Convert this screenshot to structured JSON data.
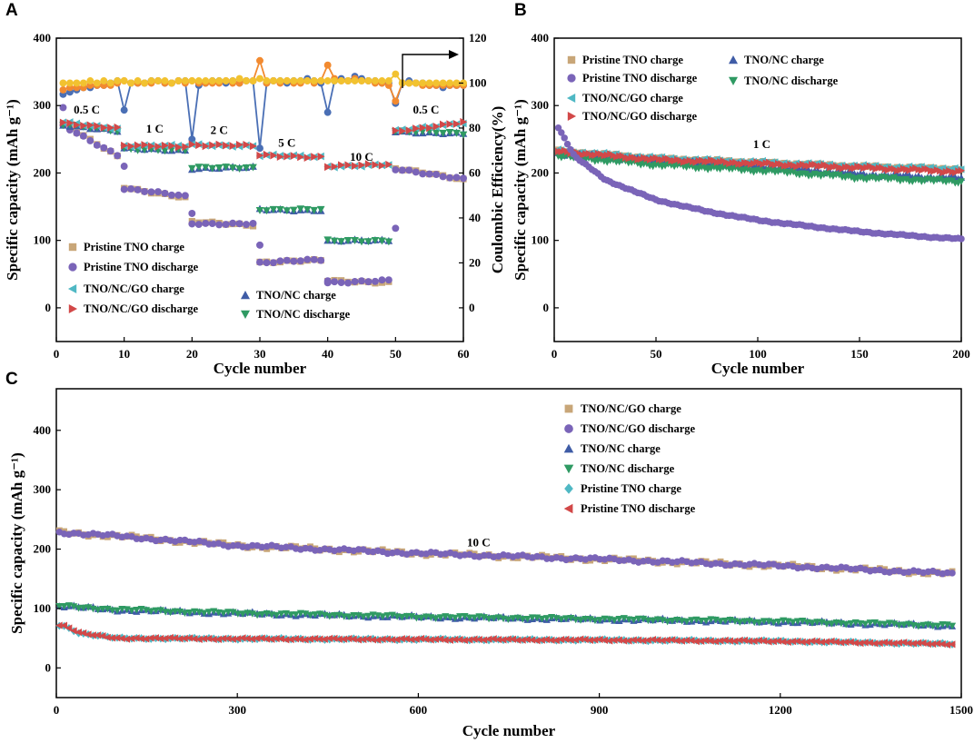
{
  "colors": {
    "tan": "#C8A678",
    "purple": "#7A64B8",
    "cyan": "#4FB8C4",
    "red": "#D24848",
    "blue": "#3F5CA6",
    "green": "#2F9A63",
    "ce_blue": "#4A6FB5",
    "ce_orange": "#F28A30",
    "ce_yellow": "#F2C230"
  },
  "chart_data": [
    {
      "panel": "A",
      "type": "scatter",
      "xlabel": "Cycle number",
      "ylabel": "Specific capacity (mAh g⁻¹)",
      "y2label": "Coulombic Efficiency(%)",
      "xlim": [
        0,
        60
      ],
      "ylim": [
        -50,
        400
      ],
      "y2lim": [
        -15,
        120
      ],
      "x_ticks": [
        0,
        10,
        20,
        30,
        40,
        50,
        60
      ],
      "y_ticks": [
        0,
        100,
        200,
        300,
        400
      ],
      "y2_ticks": [
        0,
        20,
        40,
        60,
        80,
        100,
        120
      ],
      "rate_labels": [
        {
          "text": "0.5 C",
          "x": 4.5,
          "y": 288
        },
        {
          "text": "1 C",
          "x": 14.5,
          "y": 260
        },
        {
          "text": "2 C",
          "x": 24,
          "y": 258
        },
        {
          "text": "5 C",
          "x": 34,
          "y": 239
        },
        {
          "text": "10 C",
          "x": 45,
          "y": 218
        },
        {
          "text": "0.5 C",
          "x": 54.5,
          "y": 288
        }
      ],
      "legend": [
        {
          "label": "Pristine TNO charge",
          "marker": "square",
          "color": "tan"
        },
        {
          "label": "Pristine TNO discharge",
          "marker": "circle",
          "color": "purple"
        },
        {
          "label": "TNO/NC/GO charge",
          "marker": "tri-left",
          "color": "cyan"
        },
        {
          "label": "TNO/NC/GO discharge",
          "marker": "tri-right",
          "color": "red"
        },
        {
          "label": "TNO/NC charge",
          "marker": "tri-up",
          "color": "blue"
        },
        {
          "label": "TNO/NC discharge",
          "marker": "tri-down",
          "color": "green"
        }
      ],
      "series_segments": {
        "pristine": [
          [
            1,
            9,
            272,
            225
          ],
          [
            10,
            19,
            179,
            163
          ],
          [
            20,
            29,
            127,
            123
          ],
          [
            30,
            39,
            68,
            70
          ],
          [
            40,
            49,
            40,
            38
          ],
          [
            50,
            60,
            207,
            190
          ]
        ],
        "nc_go": [
          [
            1,
            9,
            275,
            266
          ],
          [
            10,
            19,
            240,
            240
          ],
          [
            20,
            29,
            242,
            240
          ],
          [
            30,
            39,
            226,
            224
          ],
          [
            40,
            49,
            210,
            212
          ],
          [
            50,
            60,
            262,
            275
          ]
        ],
        "nc": [
          [
            1,
            9,
            272,
            262
          ],
          [
            10,
            19,
            236,
            234
          ],
          [
            20,
            29,
            207,
            208
          ],
          [
            30,
            39,
            146,
            145
          ],
          [
            40,
            49,
            99,
            100
          ],
          [
            50,
            60,
            262,
            258
          ]
        ]
      },
      "extra_points": {
        "pristine": [
          [
            1,
            297
          ],
          [
            10,
            210
          ],
          [
            20,
            140
          ],
          [
            30,
            93
          ],
          [
            40,
            40
          ],
          [
            50,
            118
          ]
        ]
      },
      "coulombic_efficiency": {
        "x": [
          1,
          2,
          3,
          4,
          5,
          6,
          7,
          8,
          9,
          10,
          11,
          12,
          13,
          14,
          15,
          16,
          17,
          18,
          19,
          20,
          21,
          22,
          23,
          24,
          25,
          26,
          27,
          28,
          29,
          30,
          31,
          32,
          33,
          34,
          35,
          36,
          37,
          38,
          39,
          40,
          41,
          42,
          43,
          44,
          45,
          46,
          47,
          48,
          49,
          50,
          51,
          52,
          53,
          54,
          55,
          56,
          57,
          58,
          59,
          60
        ],
        "pristine": [
          95,
          96,
          97,
          98,
          98,
          99,
          99,
          100,
          101,
          88,
          100,
          100,
          100,
          101,
          101,
          100,
          100,
          101,
          101,
          75,
          99,
          100,
          101,
          101,
          100,
          101,
          100,
          101,
          101,
          71,
          100,
          101,
          101,
          100,
          101,
          101,
          102,
          101,
          100,
          87,
          101,
          102,
          101,
          103,
          102,
          101,
          101,
          100,
          100,
          91,
          100,
          101,
          100,
          100,
          99,
          99,
          98,
          99,
          99,
          99
        ],
        "nc_go": [
          97,
          98,
          98,
          98,
          99,
          99,
          99,
          99,
          100,
          101,
          100,
          100,
          100,
          100,
          101,
          100,
          100,
          101,
          100,
          101,
          100,
          100,
          100,
          100,
          101,
          100,
          100,
          101,
          101,
          110,
          100,
          101,
          100,
          101,
          100,
          100,
          101,
          100,
          101,
          108,
          102,
          101,
          101,
          102,
          101,
          101,
          100,
          100,
          99,
          92,
          100,
          100,
          100,
          99,
          99,
          99,
          99,
          99,
          99,
          99
        ],
        "nc_tno": [
          100,
          100,
          100,
          100,
          101,
          100,
          101,
          100,
          101,
          101,
          100,
          101,
          100,
          101,
          101,
          101,
          100,
          101,
          101,
          101,
          101,
          101,
          101,
          101,
          101,
          101,
          102,
          101,
          101,
          102,
          101,
          101,
          101,
          101,
          101,
          101,
          101,
          101,
          101,
          101,
          101,
          101,
          101,
          101,
          101,
          101,
          101,
          101,
          101,
          104,
          100,
          100,
          100,
          100,
          100,
          100,
          100,
          100,
          100,
          100
        ]
      }
    },
    {
      "panel": "B",
      "type": "scatter",
      "xlabel": "Cycle number",
      "ylabel": "Specific capacity (mAh g⁻¹)",
      "xlim": [
        0,
        200
      ],
      "ylim": [
        -50,
        400
      ],
      "x_ticks": [
        0,
        50,
        100,
        150,
        200
      ],
      "y_ticks": [
        0,
        100,
        200,
        300,
        400
      ],
      "annotation": {
        "text": "1 C",
        "x": 102,
        "y": 237
      },
      "legend": [
        {
          "label": "Pristine TNO charge",
          "marker": "square",
          "color": "tan"
        },
        {
          "label": "Pristine TNO discharge",
          "marker": "circle",
          "color": "purple"
        },
        {
          "label": "TNO/NC charge",
          "marker": "tri-up",
          "color": "blue"
        },
        {
          "label": "TNO/NC discharge",
          "marker": "tri-down",
          "color": "green"
        },
        {
          "label": "TNO/NC/GO charge",
          "marker": "tri-left",
          "color": "cyan"
        },
        {
          "label": "TNO/NC/GO discharge",
          "marker": "tri-right",
          "color": "red"
        }
      ],
      "curves": {
        "pristine": [
          [
            2,
            268
          ],
          [
            10,
            225
          ],
          [
            25,
            190
          ],
          [
            50,
            160
          ],
          [
            75,
            143
          ],
          [
            100,
            130
          ],
          [
            125,
            121
          ],
          [
            150,
            113
          ],
          [
            175,
            107
          ],
          [
            200,
            102
          ]
        ],
        "nc_go": [
          [
            2,
            233
          ],
          [
            50,
            222
          ],
          [
            100,
            216
          ],
          [
            150,
            210
          ],
          [
            200,
            206
          ]
        ],
        "nc_go_red": [
          [
            2,
            232
          ],
          [
            50,
            220
          ],
          [
            100,
            214
          ],
          [
            150,
            208
          ],
          [
            200,
            202
          ]
        ],
        "nc": [
          [
            2,
            229
          ],
          [
            50,
            218
          ],
          [
            100,
            210
          ],
          [
            150,
            198
          ],
          [
            200,
            192
          ]
        ],
        "nc_green": [
          [
            2,
            225
          ],
          [
            50,
            212
          ],
          [
            100,
            204
          ],
          [
            150,
            193
          ],
          [
            200,
            187
          ]
        ]
      }
    },
    {
      "panel": "C",
      "type": "scatter",
      "xlabel": "Cycle number",
      "ylabel": "Specific capacity (mAh g⁻¹)",
      "xlim": [
        0,
        1500
      ],
      "ylim": [
        -50,
        470
      ],
      "x_ticks": [
        0,
        300,
        600,
        900,
        1200,
        1500
      ],
      "y_ticks": [
        0,
        100,
        200,
        300,
        400
      ],
      "annotation": {
        "text": "10 C",
        "x": 700,
        "y": 205
      },
      "legend": [
        {
          "label": "TNO/NC/GO charge",
          "marker": "square",
          "color": "tan"
        },
        {
          "label": "TNO/NC/GO discharge",
          "marker": "circle",
          "color": "purple"
        },
        {
          "label": "TNO/NC charge",
          "marker": "tri-up",
          "color": "blue"
        },
        {
          "label": "TNO/NC discharge",
          "marker": "tri-down",
          "color": "green"
        },
        {
          "label": "Pristine TNO charge",
          "marker": "diamond",
          "color": "cyan"
        },
        {
          "label": "Pristine TNO discharge",
          "marker": "tri-left",
          "color": "red"
        }
      ],
      "curves": {
        "nc_go": [
          [
            10,
            228
          ],
          [
            100,
            222
          ],
          [
            300,
            206
          ],
          [
            600,
            193
          ],
          [
            900,
            183
          ],
          [
            1200,
            172
          ],
          [
            1500,
            158
          ]
        ],
        "nc": [
          [
            10,
            104
          ],
          [
            100,
            98
          ],
          [
            300,
            92
          ],
          [
            600,
            86
          ],
          [
            900,
            82
          ],
          [
            1200,
            78
          ],
          [
            1500,
            71
          ]
        ],
        "pristine": [
          [
            10,
            72
          ],
          [
            40,
            58
          ],
          [
            100,
            50
          ],
          [
            300,
            49
          ],
          [
            600,
            48
          ],
          [
            900,
            47
          ],
          [
            1200,
            45
          ],
          [
            1500,
            40
          ]
        ]
      }
    }
  ]
}
